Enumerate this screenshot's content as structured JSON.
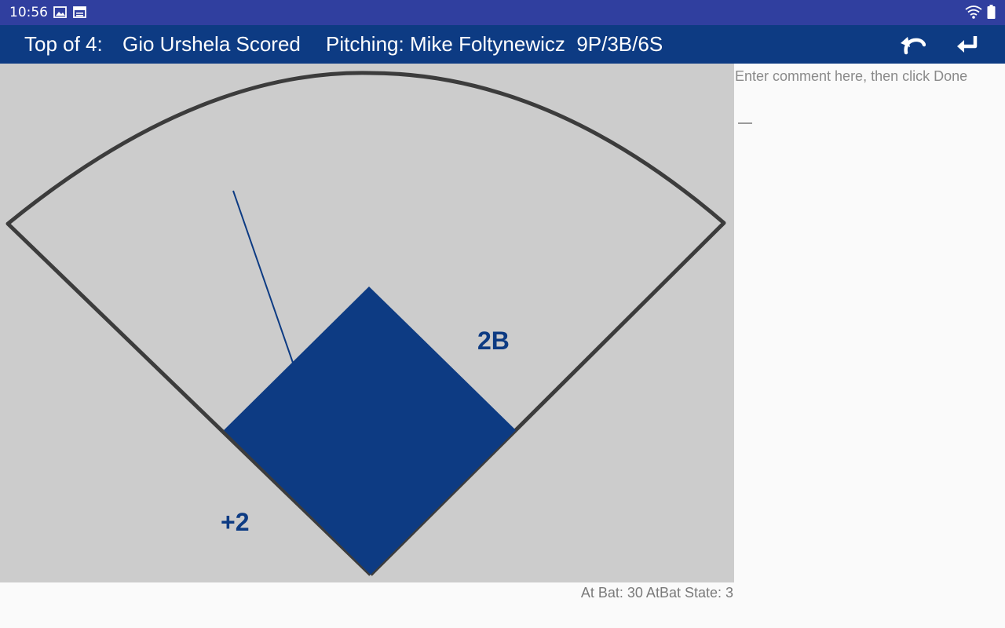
{
  "status_bar": {
    "time": "10:56",
    "icons_left": [
      "image-icon",
      "calendar-icon"
    ],
    "icons_right": [
      "wifi-icon",
      "battery-icon"
    ]
  },
  "app_bar": {
    "inning": "Top of 4:",
    "event": "Gio Urshela Scored",
    "pitching": "Pitching: Mike Foltynewicz  9P/3B/6S",
    "actions": [
      "undo-icon",
      "enter-icon"
    ]
  },
  "field": {
    "hit_label": "2B",
    "runs_label": "+2",
    "colors": {
      "background": "#cccccc",
      "fair_territory": "#cccccc",
      "outline": "#3c3c3c",
      "infield": "#0d3b83",
      "hit_line": "#0d3b83"
    }
  },
  "comment": {
    "placeholder": "Enter comment here, then click Done",
    "value": ""
  },
  "footer": {
    "at_bat_status": "At Bat: 30 AtBat State: 3"
  }
}
